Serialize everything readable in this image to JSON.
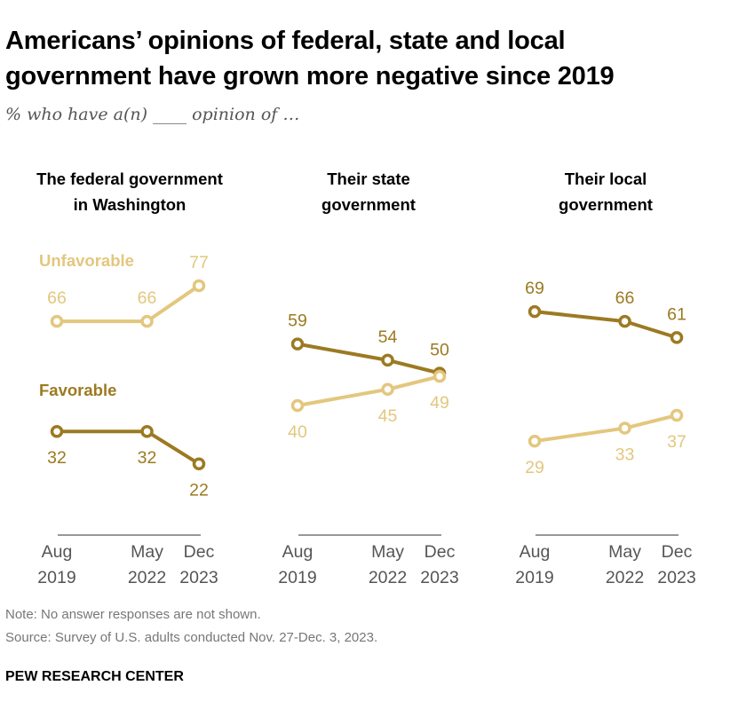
{
  "title": "Americans’ opinions of federal, state and local government have grown more negative since 2019",
  "subtitle": "% who have a(n) ____ opinion of …",
  "note": "Note: No answer responses are not shown.",
  "source": "Source: Survey of U.S. adults conducted Nov. 27-Dec. 3, 2023.",
  "brand": "PEW RESEARCH CENTER",
  "colors": {
    "Favorable": "#9C7A22",
    "Unfavorable": "#E3C77E",
    "axis": "#777777",
    "tick_text": "#555555"
  },
  "chart_data": [
    {
      "type": "line",
      "title": [
        "The federal government",
        "in Washington"
      ],
      "x": [
        "Aug 2019",
        "May 2022",
        "Dec 2023"
      ],
      "tick_labels": [
        [
          "Aug",
          "2019"
        ],
        [
          "May",
          "2022"
        ],
        [
          "Dec",
          "2023"
        ]
      ],
      "series": [
        {
          "name": "Unfavorable",
          "values": [
            66,
            66,
            77
          ],
          "label_pos": "above"
        },
        {
          "name": "Favorable",
          "values": [
            32,
            32,
            22
          ],
          "label_pos": "below"
        }
      ],
      "legend": "inline"
    },
    {
      "type": "line",
      "title": [
        "Their state",
        "government"
      ],
      "x": [
        "Aug 2019",
        "May 2022",
        "Dec 2023"
      ],
      "tick_labels": [
        [
          "Aug",
          "2019"
        ],
        [
          "May",
          "2022"
        ],
        [
          "Dec",
          "2023"
        ]
      ],
      "series": [
        {
          "name": "Favorable",
          "values": [
            59,
            54,
            50
          ],
          "label_pos": "above"
        },
        {
          "name": "Unfavorable",
          "values": [
            40,
            45,
            49
          ],
          "label_pos": "below"
        }
      ]
    },
    {
      "type": "line",
      "title": [
        "Their local",
        "government"
      ],
      "x": [
        "Aug 2019",
        "May 2022",
        "Dec 2023"
      ],
      "tick_labels": [
        [
          "Aug",
          "2019"
        ],
        [
          "May",
          "2022"
        ],
        [
          "Dec",
          "2023"
        ]
      ],
      "series": [
        {
          "name": "Favorable",
          "values": [
            69,
            66,
            61
          ],
          "label_pos": "above"
        },
        {
          "name": "Unfavorable",
          "values": [
            29,
            33,
            37
          ],
          "label_pos": "below"
        }
      ]
    }
  ]
}
